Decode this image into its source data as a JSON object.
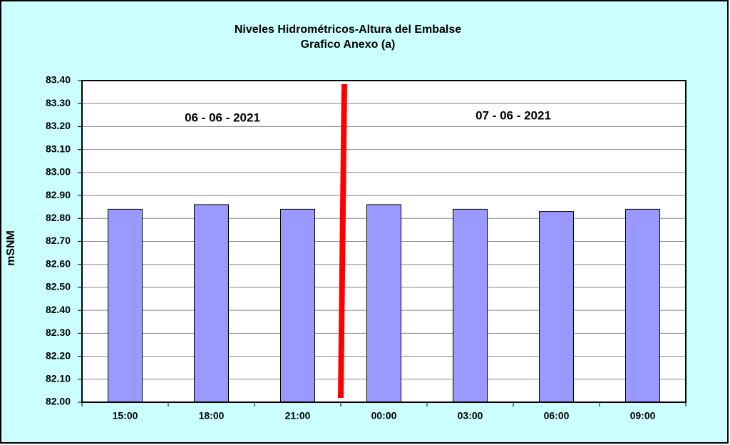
{
  "chart_data": {
    "type": "bar",
    "title": "Niveles Hidrométricos-Altura del Embalse",
    "subtitle": "Grafico Anexo (a)",
    "y_label": "mSNM",
    "categories": [
      "15:00",
      "18:00",
      "21:00",
      "00:00",
      "03:00",
      "06:00",
      "09:00"
    ],
    "values": [
      82.84,
      82.86,
      82.84,
      82.86,
      82.84,
      82.83,
      82.84
    ],
    "color": "#9999ff",
    "ylim": [
      82,
      83.4
    ],
    "yticks": [
      {
        "value": 82,
        "label": "82.00"
      },
      {
        "value": 82.1,
        "label": "82.10"
      },
      {
        "value": 82.2,
        "label": "82.20"
      },
      {
        "value": 82.3,
        "label": "82.30"
      },
      {
        "value": 82.4,
        "label": "82.40"
      },
      {
        "value": 82.5,
        "label": "82.50"
      },
      {
        "value": 82.6,
        "label": "82.60"
      },
      {
        "value": 82.7,
        "label": "82.70"
      },
      {
        "value": 82.8,
        "label": "82.80"
      },
      {
        "value": 82.9,
        "label": "82.90"
      },
      {
        "value": 83,
        "label": "83.00"
      },
      {
        "value": 83.1,
        "label": "83.10"
      },
      {
        "value": 83.2,
        "label": "83.20"
      },
      {
        "value": 83.3,
        "label": "83.30"
      },
      {
        "value": 83.4,
        "label": "83.40"
      }
    ],
    "grid": true,
    "annotations": [
      "06 - 06 - 2021",
      "07 - 06 - 2021"
    ]
  }
}
